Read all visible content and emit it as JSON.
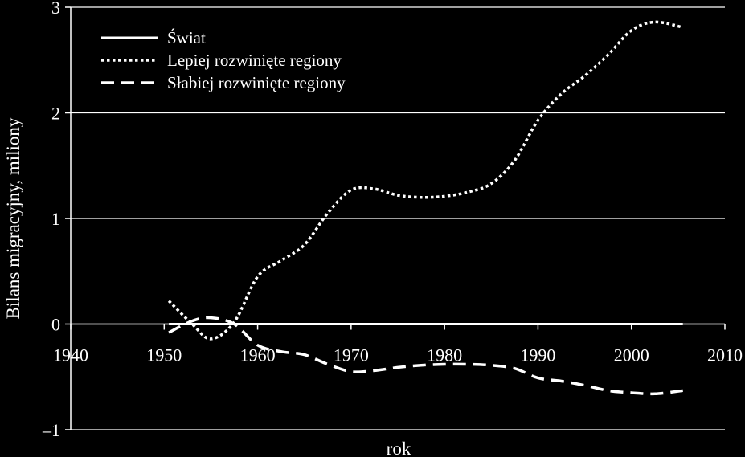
{
  "chart_data": {
    "type": "line",
    "title": "",
    "xlabel": "rok",
    "ylabel": "Bilans migracyjny, miliony",
    "xlim": [
      1940,
      2010
    ],
    "ylim": [
      -1,
      3
    ],
    "xticks": [
      1940,
      1950,
      1960,
      1970,
      1980,
      1990,
      2000,
      2010
    ],
    "yticks": [
      -1,
      0,
      1,
      2,
      3
    ],
    "xtick_labels": [
      "1940",
      "1950",
      "1960",
      "1970",
      "1980",
      "1990",
      "2000",
      "2010"
    ],
    "ytick_labels": [
      "–1",
      "0",
      "1",
      "2",
      "3"
    ],
    "grid": "horizontal",
    "legend_position": "top-left",
    "colors": {
      "background": "#000000",
      "foreground": "#ffffff"
    },
    "series": [
      {
        "name": "Świat",
        "style": "solid",
        "points": [
          [
            1950.5,
            0
          ],
          [
            1955,
            0
          ],
          [
            1960,
            0
          ],
          [
            1965,
            0
          ],
          [
            1970,
            0
          ],
          [
            1975,
            0
          ],
          [
            1980,
            0
          ],
          [
            1985,
            0
          ],
          [
            1990,
            0
          ],
          [
            1995,
            0
          ],
          [
            2000,
            0
          ],
          [
            2005.5,
            0
          ]
        ]
      },
      {
        "name": "Lepiej rozwinięte regiony",
        "style": "dotted",
        "points": [
          [
            1950.5,
            0.22
          ],
          [
            1953,
            0.0
          ],
          [
            1955,
            -0.14
          ],
          [
            1957.5,
            0.02
          ],
          [
            1960,
            0.45
          ],
          [
            1962.5,
            0.6
          ],
          [
            1965,
            0.75
          ],
          [
            1967.5,
            1.05
          ],
          [
            1970,
            1.27
          ],
          [
            1972.5,
            1.28
          ],
          [
            1975,
            1.22
          ],
          [
            1977.5,
            1.2
          ],
          [
            1980,
            1.21
          ],
          [
            1982.5,
            1.25
          ],
          [
            1985,
            1.33
          ],
          [
            1987.5,
            1.55
          ],
          [
            1990,
            1.93
          ],
          [
            1992.5,
            2.18
          ],
          [
            1995,
            2.35
          ],
          [
            1997.5,
            2.55
          ],
          [
            2000,
            2.78
          ],
          [
            2002.5,
            2.86
          ],
          [
            2005.5,
            2.81
          ]
        ]
      },
      {
        "name": "Słabiej rozwinięte regiony",
        "style": "dashed",
        "points": [
          [
            1950.5,
            -0.08
          ],
          [
            1953,
            0.03
          ],
          [
            1955,
            0.06
          ],
          [
            1957.5,
            0.0
          ],
          [
            1960,
            -0.2
          ],
          [
            1962.5,
            -0.26
          ],
          [
            1965,
            -0.29
          ],
          [
            1967.5,
            -0.38
          ],
          [
            1970,
            -0.45
          ],
          [
            1972.5,
            -0.44
          ],
          [
            1975,
            -0.41
          ],
          [
            1977.5,
            -0.39
          ],
          [
            1980,
            -0.38
          ],
          [
            1982.5,
            -0.38
          ],
          [
            1985,
            -0.39
          ],
          [
            1987.5,
            -0.42
          ],
          [
            1990,
            -0.51
          ],
          [
            1992.5,
            -0.54
          ],
          [
            1995,
            -0.58
          ],
          [
            1997.5,
            -0.63
          ],
          [
            2000,
            -0.65
          ],
          [
            2002.5,
            -0.66
          ],
          [
            2005.5,
            -0.63
          ]
        ]
      }
    ]
  }
}
